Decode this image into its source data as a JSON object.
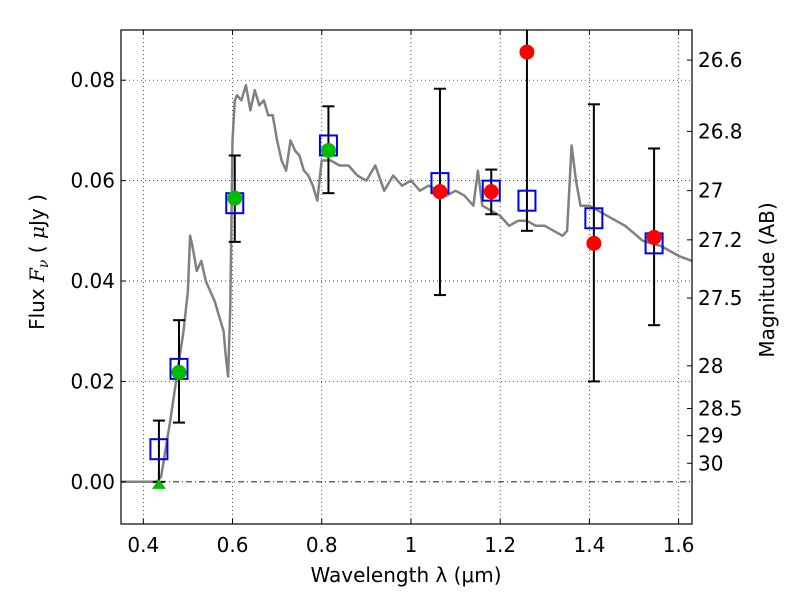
{
  "chart_data": {
    "type": "scatter",
    "title": "",
    "xlabel": "Wavelength  λ (μm)",
    "ylabel": "Flux  Fν  ( μJy )",
    "ylabel_right": "Magnitude (AB)",
    "xlim": [
      0.35,
      1.63
    ],
    "ylim": [
      -0.0084,
      0.09
    ],
    "grid": true,
    "legend": "none",
    "x_ticks": [
      0.4,
      0.6,
      0.8,
      1.0,
      1.2,
      1.4,
      1.6
    ],
    "x_tick_labels": [
      "0.4",
      "0.6",
      "0.8",
      "1",
      "1.2",
      "1.4",
      "1.6"
    ],
    "y_ticks": [
      0.0,
      0.02,
      0.04,
      0.06,
      0.08
    ],
    "y_tick_labels": [
      "0.00",
      "0.02",
      "0.04",
      "0.06",
      "0.08"
    ],
    "right_ticks": [
      {
        "label": "26.6",
        "flux": 0.084
      },
      {
        "label": "26.8",
        "flux": 0.0698
      },
      {
        "label": "27",
        "flux": 0.058
      },
      {
        "label": "27.2",
        "flux": 0.0482
      },
      {
        "label": "27.5",
        "flux": 0.0366
      },
      {
        "label": "28",
        "flux": 0.0231
      },
      {
        "label": "28.5",
        "flux": 0.0146
      },
      {
        "label": "29",
        "flux": 0.0092
      },
      {
        "label": "30",
        "flux": 0.0037
      }
    ],
    "series": [
      {
        "name": "model SED",
        "kind": "line",
        "color": "#808080",
        "x": [
          0.35,
          0.43,
          0.44,
          0.46,
          0.48,
          0.49,
          0.5,
          0.505,
          0.51,
          0.52,
          0.53,
          0.54,
          0.55,
          0.56,
          0.57,
          0.58,
          0.585,
          0.59,
          0.595,
          0.6,
          0.605,
          0.61,
          0.62,
          0.63,
          0.64,
          0.65,
          0.66,
          0.67,
          0.68,
          0.69,
          0.7,
          0.71,
          0.72,
          0.73,
          0.74,
          0.75,
          0.76,
          0.77,
          0.78,
          0.79,
          0.8,
          0.82,
          0.84,
          0.86,
          0.88,
          0.9,
          0.92,
          0.94,
          0.96,
          0.98,
          1.0,
          1.02,
          1.04,
          1.06,
          1.08,
          1.1,
          1.12,
          1.14,
          1.15,
          1.16,
          1.18,
          1.2,
          1.22,
          1.24,
          1.26,
          1.28,
          1.3,
          1.32,
          1.34,
          1.35,
          1.36,
          1.37,
          1.38,
          1.4,
          1.44,
          1.48,
          1.52,
          1.56,
          1.6,
          1.63
        ],
        "y": [
          0.0,
          0.0,
          0.001,
          0.012,
          0.024,
          0.03,
          0.038,
          0.049,
          0.047,
          0.042,
          0.044,
          0.04,
          0.038,
          0.036,
          0.033,
          0.03,
          0.025,
          0.021,
          0.035,
          0.068,
          0.076,
          0.077,
          0.076,
          0.079,
          0.074,
          0.078,
          0.075,
          0.076,
          0.073,
          0.073,
          0.068,
          0.064,
          0.062,
          0.068,
          0.066,
          0.065,
          0.062,
          0.061,
          0.059,
          0.056,
          0.064,
          0.064,
          0.063,
          0.063,
          0.061,
          0.06,
          0.063,
          0.058,
          0.061,
          0.059,
          0.06,
          0.058,
          0.059,
          0.058,
          0.057,
          0.058,
          0.057,
          0.055,
          0.062,
          0.055,
          0.054,
          0.053,
          0.051,
          0.052,
          0.052,
          0.051,
          0.051,
          0.05,
          0.049,
          0.05,
          0.067,
          0.06,
          0.055,
          0.055,
          0.053,
          0.051,
          0.048,
          0.047,
          0.045,
          0.044
        ]
      },
      {
        "name": "model photometry",
        "kind": "open-square",
        "color": "#0000ee",
        "x": [
          0.435,
          0.48,
          0.605,
          0.815,
          1.065,
          1.18,
          1.26,
          1.41,
          1.545
        ],
        "y": [
          0.0065,
          0.0225,
          0.0555,
          0.067,
          0.0595,
          0.058,
          0.056,
          0.0525,
          0.0475
        ]
      },
      {
        "name": "observed detections",
        "kind": "filled-circle",
        "color": "#00bb00",
        "x": [
          0.48,
          0.605,
          0.815
        ],
        "y": [
          0.0218,
          0.0565,
          0.066
        ],
        "yerr_low": [
          0.0118,
          0.0478,
          0.0575
        ],
        "yerr_high": [
          0.0322,
          0.065,
          0.0748
        ]
      },
      {
        "name": "observed low-S/N",
        "kind": "filled-circle",
        "color": "#ff0000",
        "x": [
          1.065,
          1.18,
          1.26,
          1.41,
          1.545
        ],
        "y": [
          0.0578,
          0.0578,
          0.0856,
          0.0475,
          0.0487
        ],
        "yerr_low": [
          0.0372,
          0.0533,
          0.05,
          0.02,
          0.0312
        ],
        "yerr_high": [
          0.0783,
          0.0622,
          0.091,
          0.0752,
          0.0664
        ]
      },
      {
        "name": "upper limit",
        "kind": "triangle",
        "color": "#00bb00",
        "x": [
          0.435
        ],
        "y": [
          0.0
        ],
        "yerr_low": [
          0.0
        ],
        "yerr_high": [
          0.0122
        ]
      }
    ]
  }
}
